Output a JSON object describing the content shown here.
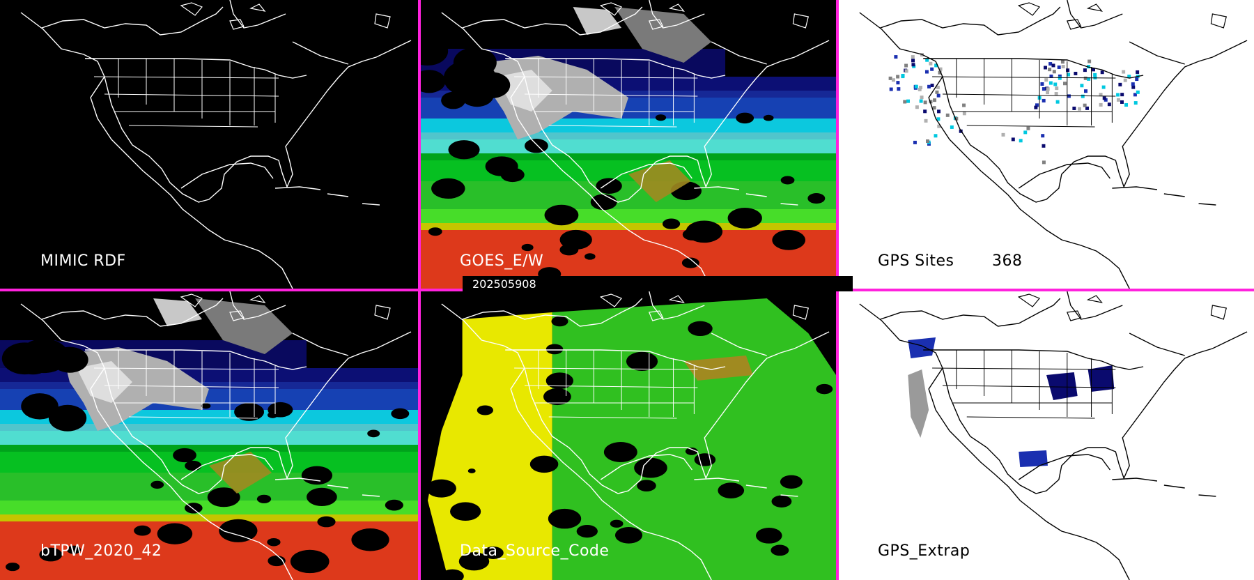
{
  "panels": [
    {
      "id": "mimic",
      "label": "MIMIC RDF",
      "bg": "#000000",
      "line": "#ffffff",
      "text": "#ffffff",
      "field": "none"
    },
    {
      "id": "goes",
      "label": "GOES_E/W",
      "bg": "#000000",
      "line": "#ffffff",
      "text": "#ffffff",
      "field": "tpw"
    },
    {
      "id": "gps",
      "label": "GPS Sites",
      "count": "368",
      "bg": "#ffffff",
      "line": "#000000",
      "text": "#000000",
      "field": "sites"
    },
    {
      "id": "btpw",
      "label": "bTPW_2020_42",
      "bg": "#000000",
      "line": "#ffffff",
      "text": "#ffffff",
      "field": "tpw"
    },
    {
      "id": "dsc",
      "label": "Data_Source_Code",
      "bg": "#000000",
      "line": "#ffffff",
      "text": "#ffffff",
      "field": "source"
    },
    {
      "id": "gpsx",
      "label": "GPS_Extrap",
      "bg": "#ffffff",
      "line": "#000000",
      "text": "#000000",
      "field": "extrap"
    }
  ],
  "timestamp": "202505908",
  "separator_color": "#ff22dd",
  "tpw_palette": [
    "#0a0a6e",
    "#1a2fb0",
    "#00c8e0",
    "#5ee8f0",
    "#00c020",
    "#30e030",
    "#a08a20",
    "#e8e800",
    "#e02020"
  ]
}
